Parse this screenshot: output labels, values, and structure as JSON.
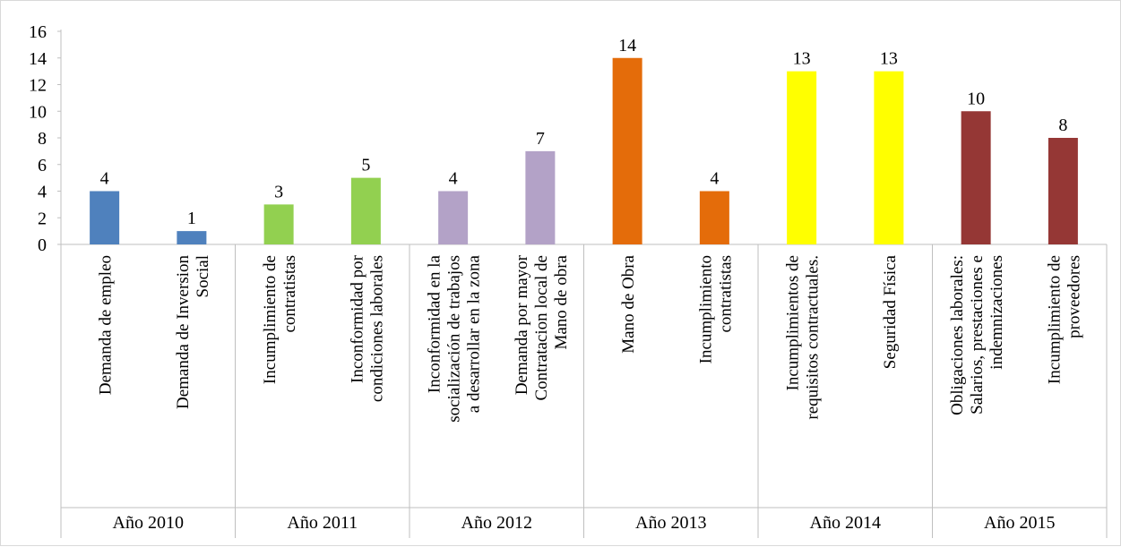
{
  "chart_data": {
    "type": "bar",
    "title": "",
    "xlabel": "",
    "ylabel": "",
    "ylim": [
      0,
      16
    ],
    "y_ticks": [
      0,
      2,
      4,
      6,
      8,
      10,
      12,
      14,
      16
    ],
    "grid": false,
    "legend": "none",
    "data_labels": true,
    "groups": [
      {
        "label": "Año 2010",
        "color": "#4F81BD",
        "bars": [
          {
            "label": [
              "Demanda de empleo"
            ],
            "value": 4
          },
          {
            "label": [
              "Demanda de Inversion",
              "Social"
            ],
            "value": 1
          }
        ]
      },
      {
        "label": "Año 2011",
        "color": "#92D050",
        "bars": [
          {
            "label": [
              "Incumplimiento de",
              "contratistas"
            ],
            "value": 3
          },
          {
            "label": [
              "Inconformidad por",
              "condiciones laborales"
            ],
            "value": 5
          }
        ]
      },
      {
        "label": "Año 2012",
        "color": "#B3A2C7",
        "bars": [
          {
            "label": [
              "Inconformidad en la",
              "socialización de trabajos",
              "a desarrollar en la zona"
            ],
            "value": 4
          },
          {
            "label": [
              "Demanda por mayor",
              "Contratacion local de",
              "Mano de obra"
            ],
            "value": 7
          }
        ]
      },
      {
        "label": "Año 2013",
        "color": "#E46C0A",
        "bars": [
          {
            "label": [
              "Mano de Obra"
            ],
            "value": 14
          },
          {
            "label": [
              "Incumplimiento",
              "contratistas"
            ],
            "value": 4
          }
        ]
      },
      {
        "label": "Año 2014",
        "color": "#FFFF00",
        "bars": [
          {
            "label": [
              "Incumplimientos de",
              "requisitos contractuales."
            ],
            "value": 13
          },
          {
            "label": [
              "Seguridad Física"
            ],
            "value": 13
          }
        ]
      },
      {
        "label": "Año 2015",
        "color": "#953735",
        "bars": [
          {
            "label": [
              "Obligaciones laborales:",
              "Salarios, prestaciones e",
              "indemnizaciones"
            ],
            "value": 10
          },
          {
            "label": [
              "Incumplimiento de",
              "proveedores"
            ],
            "value": 8
          }
        ]
      }
    ]
  }
}
